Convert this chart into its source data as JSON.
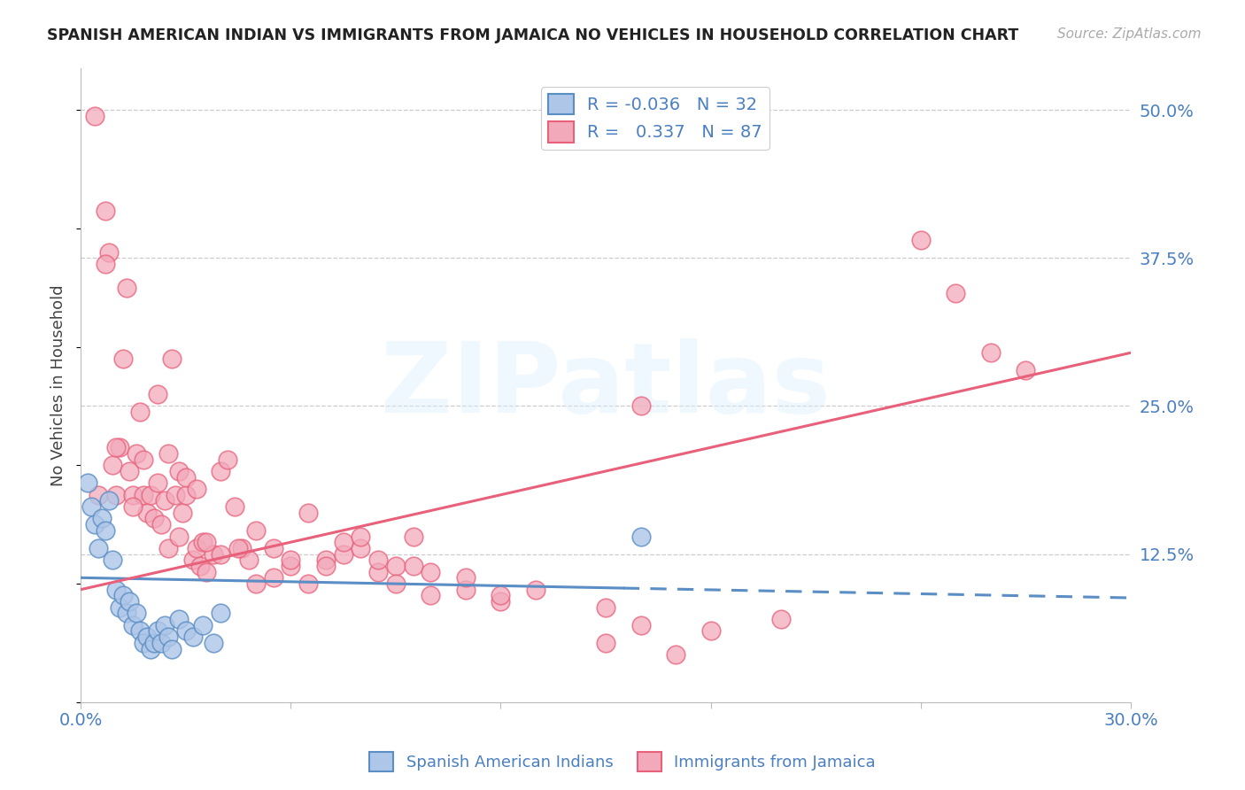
{
  "title": "SPANISH AMERICAN INDIAN VS IMMIGRANTS FROM JAMAICA NO VEHICLES IN HOUSEHOLD CORRELATION CHART",
  "source": "Source: ZipAtlas.com",
  "ylabel": "No Vehicles in Household",
  "ytick_labels": [
    "50.0%",
    "37.5%",
    "25.0%",
    "12.5%"
  ],
  "ytick_values": [
    0.5,
    0.375,
    0.25,
    0.125
  ],
  "xlim": [
    0.0,
    0.3
  ],
  "ylim": [
    0.0,
    0.535
  ],
  "color_blue": "#aec6e8",
  "color_pink": "#f2aabb",
  "color_blue_line": "#5b8ec4",
  "color_pink_line": "#e8607a",
  "color_blue_text": "#4a7fc1",
  "watermark_text": "ZIPatlas",
  "blue_line_solid_end": 0.155,
  "blue_line_y_start": 0.105,
  "blue_line_y_end": 0.088,
  "pink_line_y_start": 0.095,
  "pink_line_y_end": 0.295,
  "blue_points_x": [
    0.002,
    0.003,
    0.004,
    0.005,
    0.006,
    0.007,
    0.008,
    0.009,
    0.01,
    0.011,
    0.012,
    0.013,
    0.014,
    0.015,
    0.016,
    0.017,
    0.018,
    0.019,
    0.02,
    0.021,
    0.022,
    0.023,
    0.024,
    0.025,
    0.026,
    0.028,
    0.03,
    0.032,
    0.035,
    0.038,
    0.04,
    0.16
  ],
  "blue_points_y": [
    0.185,
    0.165,
    0.15,
    0.13,
    0.155,
    0.145,
    0.17,
    0.12,
    0.095,
    0.08,
    0.09,
    0.075,
    0.085,
    0.065,
    0.075,
    0.06,
    0.05,
    0.055,
    0.045,
    0.05,
    0.06,
    0.05,
    0.065,
    0.055,
    0.045,
    0.07,
    0.06,
    0.055,
    0.065,
    0.05,
    0.075,
    0.14
  ],
  "pink_points_x": [
    0.004,
    0.005,
    0.007,
    0.008,
    0.009,
    0.01,
    0.011,
    0.012,
    0.013,
    0.014,
    0.015,
    0.016,
    0.017,
    0.018,
    0.019,
    0.02,
    0.021,
    0.022,
    0.023,
    0.024,
    0.025,
    0.026,
    0.027,
    0.028,
    0.029,
    0.03,
    0.032,
    0.033,
    0.034,
    0.035,
    0.036,
    0.038,
    0.04,
    0.042,
    0.044,
    0.046,
    0.048,
    0.05,
    0.055,
    0.06,
    0.065,
    0.07,
    0.075,
    0.08,
    0.085,
    0.09,
    0.095,
    0.1,
    0.11,
    0.12,
    0.15,
    0.16,
    0.24,
    0.25,
    0.26,
    0.27,
    0.007,
    0.01,
    0.015,
    0.018,
    0.022,
    0.025,
    0.028,
    0.03,
    0.033,
    0.036,
    0.04,
    0.045,
    0.05,
    0.055,
    0.06,
    0.065,
    0.07,
    0.075,
    0.08,
    0.085,
    0.09,
    0.095,
    0.1,
    0.11,
    0.12,
    0.13,
    0.15,
    0.16,
    0.17,
    0.18,
    0.2
  ],
  "pink_points_y": [
    0.495,
    0.175,
    0.415,
    0.38,
    0.2,
    0.175,
    0.215,
    0.29,
    0.35,
    0.195,
    0.175,
    0.21,
    0.245,
    0.175,
    0.16,
    0.175,
    0.155,
    0.185,
    0.15,
    0.17,
    0.13,
    0.29,
    0.175,
    0.14,
    0.16,
    0.175,
    0.12,
    0.13,
    0.115,
    0.135,
    0.11,
    0.125,
    0.195,
    0.205,
    0.165,
    0.13,
    0.12,
    0.1,
    0.105,
    0.115,
    0.1,
    0.12,
    0.125,
    0.13,
    0.11,
    0.115,
    0.14,
    0.09,
    0.095,
    0.085,
    0.05,
    0.25,
    0.39,
    0.345,
    0.295,
    0.28,
    0.37,
    0.215,
    0.165,
    0.205,
    0.26,
    0.21,
    0.195,
    0.19,
    0.18,
    0.135,
    0.125,
    0.13,
    0.145,
    0.13,
    0.12,
    0.16,
    0.115,
    0.135,
    0.14,
    0.12,
    0.1,
    0.115,
    0.11,
    0.105,
    0.09,
    0.095,
    0.08,
    0.065,
    0.04,
    0.06,
    0.07
  ]
}
